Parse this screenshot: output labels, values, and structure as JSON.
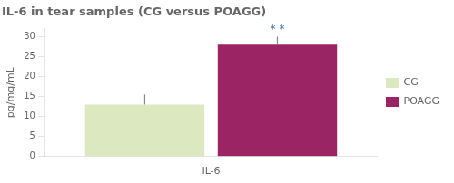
{
  "chart_data": {
    "type": "bar",
    "title": "IL-6 in tear samples (CG versus POAGG)",
    "xlabel": "IL-6",
    "ylabel": "pg/mg/mL",
    "categories": [
      null
    ],
    "series": [
      {
        "name": "CG",
        "color": "#dce9c0",
        "values": [
          13.0
        ],
        "errors": [
          2.5
        ]
      },
      {
        "name": "POAGG",
        "color": "#9b2465",
        "values": [
          28.0
        ],
        "errors": [
          2.0
        ]
      }
    ],
    "ylim": [
      0,
      32
    ],
    "yticks": [
      0,
      5,
      10,
      15,
      20,
      25,
      30
    ],
    "grid": false,
    "legend": "right",
    "tick_labels": "y",
    "annotations": [
      {
        "text": "* *",
        "series": "POAGG",
        "color": "#4477aa"
      }
    ]
  }
}
